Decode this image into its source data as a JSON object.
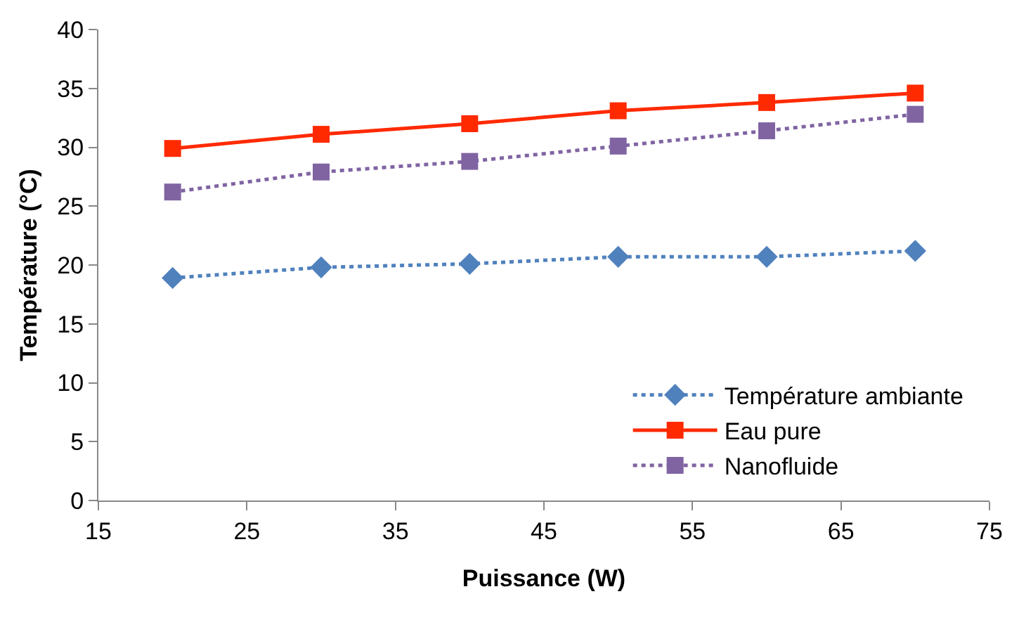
{
  "chart_data": {
    "type": "line",
    "xlabel": "Puissance (W)",
    "ylabel": "Température (°C)",
    "x": [
      20,
      30,
      40,
      50,
      60,
      70
    ],
    "xlim": [
      15,
      75
    ],
    "xticks": [
      15,
      25,
      35,
      45,
      55,
      65,
      75
    ],
    "ylim": [
      0,
      40
    ],
    "yticks": [
      0,
      5,
      10,
      15,
      20,
      25,
      30,
      35,
      40
    ],
    "grid": false,
    "legend": "bottom right",
    "series": [
      {
        "name": "Température ambiante",
        "color": "#4f81bd",
        "marker": "diamond",
        "line_style": "dotted",
        "values": [
          18.9,
          19.8,
          20.1,
          20.7,
          20.7,
          21.2
        ]
      },
      {
        "name": "Eau pure",
        "color": "#ff2a00",
        "marker": "square",
        "line_style": "solid",
        "values": [
          29.9,
          31.1,
          32.0,
          33.1,
          33.8,
          34.6
        ]
      },
      {
        "name": "Nanofluide",
        "color": "#8064a2",
        "marker": "square",
        "line_style": "dotted",
        "values": [
          26.2,
          27.9,
          28.8,
          30.1,
          31.4,
          32.8
        ]
      }
    ]
  }
}
